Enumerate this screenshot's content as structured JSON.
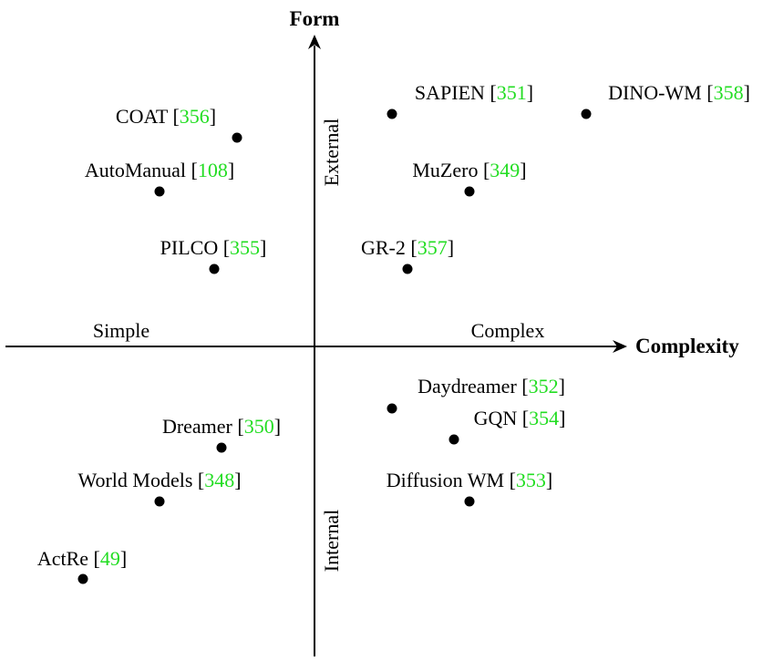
{
  "axes": {
    "y_title": "Form",
    "x_title": "Complexity",
    "x_negative_label": "Simple",
    "x_positive_label": "Complex",
    "y_positive_label": "External",
    "y_negative_label": "Internal"
  },
  "colors": {
    "citation": "#22dd22",
    "ink": "#000000"
  },
  "points": [
    {
      "name": "COAT",
      "ref": "356"
    },
    {
      "name": "AutoManual",
      "ref": "108"
    },
    {
      "name": "PILCO",
      "ref": "355"
    },
    {
      "name": "SAPIEN",
      "ref": "351"
    },
    {
      "name": "DINO-WM",
      "ref": "358"
    },
    {
      "name": "MuZero",
      "ref": "349"
    },
    {
      "name": "GR-2",
      "ref": "357"
    },
    {
      "name": "Dreamer",
      "ref": "350"
    },
    {
      "name": "World Models",
      "ref": "348"
    },
    {
      "name": "ActRe",
      "ref": "49"
    },
    {
      "name": "Daydreamer",
      "ref": "352"
    },
    {
      "name": "GQN",
      "ref": "354"
    },
    {
      "name": "Diffusion WM",
      "ref": "353"
    }
  ]
}
